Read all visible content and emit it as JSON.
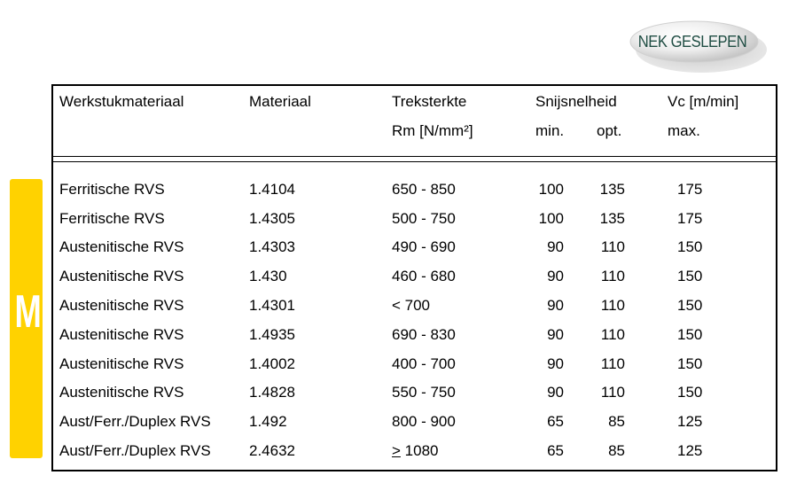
{
  "logo": {
    "text": "NEK GESLEPEN"
  },
  "side_tab": {
    "letter": "M",
    "color": "#ffd200"
  },
  "header": {
    "material": "Werkstukmateriaal",
    "grade": "Materiaal",
    "tensile_line1": "Treksterkte",
    "tensile_line2": "Rm [N/mm²]",
    "speed_line1": "Snijsnelheid",
    "speed_min": "min.",
    "speed_opt": "opt.",
    "vc_line1": "Vc [m/min]",
    "vc_max": "max."
  },
  "rows": [
    {
      "material": "Ferritische RVS",
      "grade": "1.4104",
      "tensile": "650 - 850",
      "min": "100",
      "opt": "135",
      "max": "175"
    },
    {
      "material": "Ferritische RVS",
      "grade": "1.4305",
      "tensile": "500 - 750",
      "min": "100",
      "opt": "135",
      "max": "175"
    },
    {
      "material": "Austenitische RVS",
      "grade": "1.4303",
      "tensile": "490 - 690",
      "min": "90",
      "opt": "110",
      "max": "150"
    },
    {
      "material": "Austenitische RVS",
      "grade": "1.430",
      "tensile": "460 - 680",
      "min": "90",
      "opt": "110",
      "max": "150"
    },
    {
      "material": "Austenitische RVS",
      "grade": "1.4301",
      "tensile": "< 700",
      "min": "90",
      "opt": "110",
      "max": "150"
    },
    {
      "material": "Austenitische RVS",
      "grade": "1.4935",
      "tensile": "690 - 830",
      "min": "90",
      "opt": "110",
      "max": "150"
    },
    {
      "material": "Austenitische RVS",
      "grade": "1.4002",
      "tensile": "400 - 700",
      "min": "90",
      "opt": "110",
      "max": "150"
    },
    {
      "material": "Austenitische RVS",
      "grade": "1.4828",
      "tensile": "550 - 750",
      "min": "90",
      "opt": "110",
      "max": "150"
    },
    {
      "material": "Aust/Ferr./Duplex RVS",
      "grade": "1.492",
      "tensile": "800 - 900",
      "min": "65",
      "opt": "85",
      "max": "125"
    },
    {
      "material": "Aust/Ferr./Duplex RVS",
      "grade": "2.4632",
      "tensile_symbol": ">",
      "tensile": " 1080",
      "min": "65",
      "opt": "85",
      "max": "125"
    }
  ]
}
